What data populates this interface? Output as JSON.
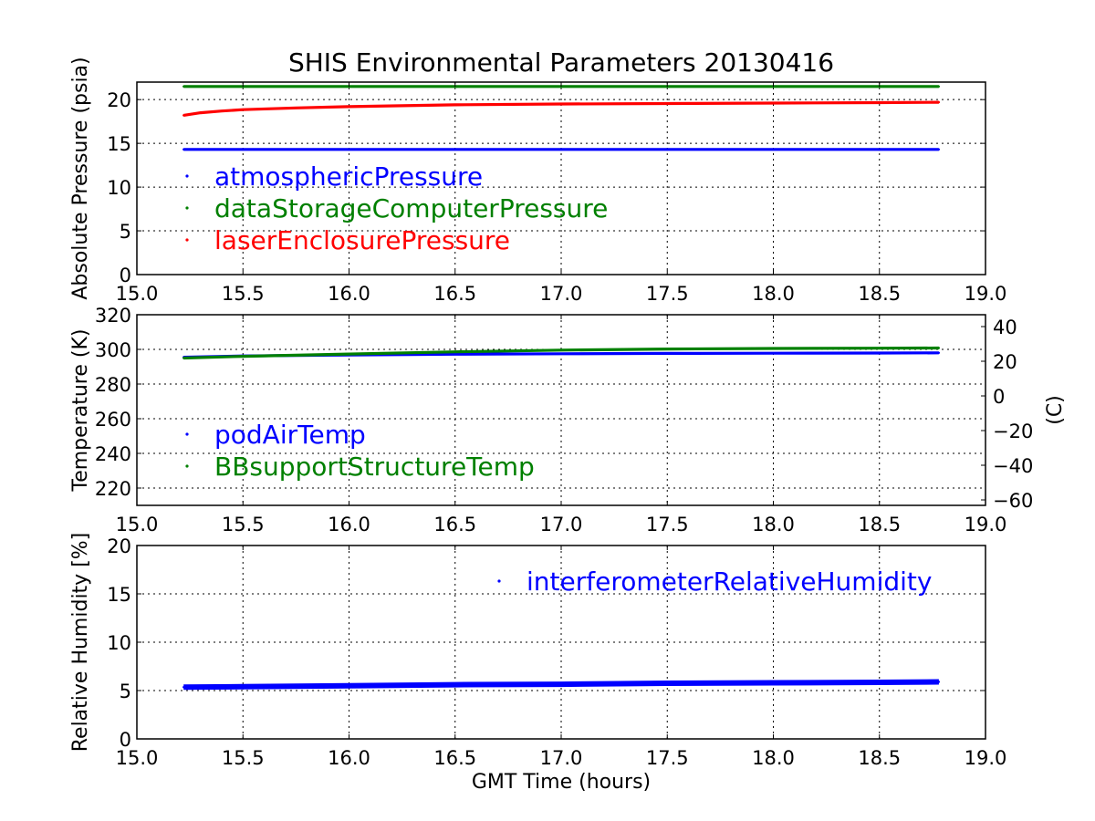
{
  "title": "SHIS Environmental Parameters 20130416",
  "colors": {
    "blue": "#0000ff",
    "green": "#008000",
    "red": "#ff0000"
  },
  "chart_data": [
    {
      "type": "scatter",
      "xlabel": "",
      "ylabel": "Absolute Pressure (psia)",
      "xlim": [
        15.0,
        19.0
      ],
      "ylim": [
        0,
        22
      ],
      "xticks": [
        "15.0",
        "15.5",
        "16.0",
        "16.5",
        "17.0",
        "17.5",
        "18.0",
        "18.5",
        "19.0"
      ],
      "yticks": [
        "0",
        "5",
        "10",
        "15",
        "20"
      ],
      "grid": true,
      "legend_position": "center-left",
      "series": [
        {
          "name": "atmosphericPressure",
          "color": "#0000ff",
          "x": [
            15.22,
            15.5,
            16.0,
            16.5,
            17.0,
            17.5,
            18.0,
            18.5,
            18.78
          ],
          "y": [
            14.3,
            14.3,
            14.3,
            14.3,
            14.3,
            14.3,
            14.3,
            14.3,
            14.3
          ]
        },
        {
          "name": "dataStorageComputerPressure",
          "color": "#008000",
          "x": [
            15.22,
            15.5,
            16.0,
            16.5,
            17.0,
            17.5,
            18.0,
            18.5,
            18.78
          ],
          "y": [
            21.5,
            21.5,
            21.5,
            21.5,
            21.5,
            21.5,
            21.5,
            21.5,
            21.5
          ]
        },
        {
          "name": "laserEnclosurePressure",
          "color": "#ff0000",
          "x": [
            15.22,
            15.3,
            15.4,
            15.5,
            15.75,
            16.0,
            16.5,
            17.0,
            17.5,
            18.0,
            18.5,
            18.78
          ],
          "y": [
            18.2,
            18.5,
            18.7,
            18.85,
            19.05,
            19.2,
            19.4,
            19.5,
            19.55,
            19.6,
            19.65,
            19.7
          ]
        }
      ]
    },
    {
      "type": "scatter",
      "xlabel": "",
      "ylabel": "Temperature (K)",
      "ylabel_right": "(C)",
      "xlim": [
        15.0,
        19.0
      ],
      "ylim": [
        210,
        320
      ],
      "ylim_right_celsius": [
        -63.15,
        46.85
      ],
      "xticks": [
        "15.0",
        "15.5",
        "16.0",
        "16.5",
        "17.0",
        "17.5",
        "18.0",
        "18.5",
        "19.0"
      ],
      "yticks": [
        "220",
        "240",
        "260",
        "280",
        "300",
        "320"
      ],
      "yticks_right": [
        "−60",
        "−40",
        "−20",
        "0",
        "20",
        "40"
      ],
      "grid": true,
      "legend_position": "lower-left",
      "series": [
        {
          "name": "podAirTemp",
          "color": "#0000ff",
          "x": [
            15.22,
            15.5,
            16.0,
            16.5,
            17.0,
            17.5,
            18.0,
            18.5,
            18.78
          ],
          "y": [
            295.5,
            296.2,
            296.8,
            297.2,
            297.5,
            297.7,
            297.8,
            297.9,
            298.0
          ]
        },
        {
          "name": "BBsupportStructureTemp",
          "color": "#008000",
          "x": [
            15.22,
            15.5,
            16.0,
            16.5,
            17.0,
            17.5,
            18.0,
            18.5,
            18.78
          ],
          "y": [
            295.0,
            296.0,
            297.3,
            298.6,
            299.6,
            300.2,
            300.5,
            300.7,
            300.8
          ]
        }
      ]
    },
    {
      "type": "scatter",
      "xlabel": "GMT Time (hours)",
      "ylabel": "Relative Humidity [%]",
      "xlim": [
        15.0,
        19.0
      ],
      "ylim": [
        0,
        20
      ],
      "xticks": [
        "15.0",
        "15.5",
        "16.0",
        "16.5",
        "17.0",
        "17.5",
        "18.0",
        "18.5",
        "19.0"
      ],
      "yticks": [
        "0",
        "5",
        "10",
        "15",
        "20"
      ],
      "grid": true,
      "legend_position": "upper-right",
      "series": [
        {
          "name": "interferometerRelativeHumidity",
          "color": "#0000ff",
          "x": [
            15.22,
            15.5,
            16.0,
            16.5,
            17.0,
            17.5,
            18.0,
            18.5,
            18.78
          ],
          "y": [
            5.35,
            5.4,
            5.5,
            5.6,
            5.65,
            5.75,
            5.8,
            5.85,
            5.9
          ]
        }
      ]
    }
  ]
}
